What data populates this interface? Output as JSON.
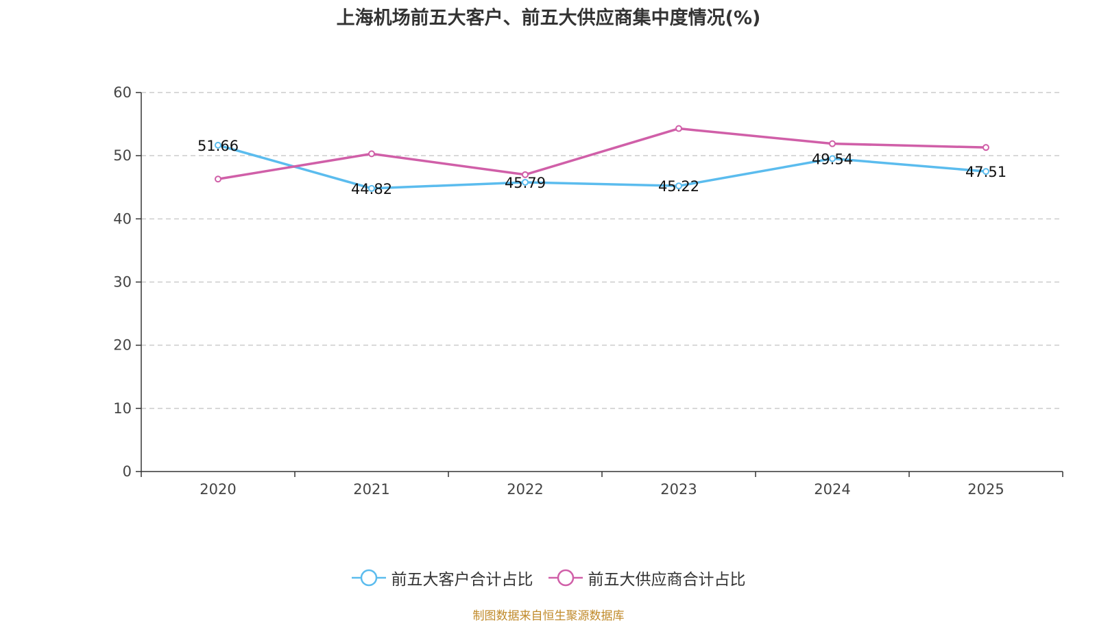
{
  "chart_data": {
    "type": "line",
    "title": "上海机场前五大客户、前五大供应商集中度情况(%)",
    "categories": [
      "2020",
      "2021",
      "2022",
      "2023",
      "2024",
      "2025"
    ],
    "ylim": [
      0,
      60
    ],
    "yticks": [
      0,
      10,
      20,
      30,
      40,
      50,
      60
    ],
    "grid": true,
    "legend_position": "bottom-center",
    "series": [
      {
        "name": "前五大客户合计占比",
        "color": "#5bbcee",
        "values": [
          51.66,
          44.82,
          45.79,
          45.22,
          49.54,
          47.51
        ],
        "labels": [
          "51.66",
          "44.82",
          "45.79",
          "45.22",
          "49.54",
          "47.51"
        ]
      },
      {
        "name": "前五大供应商合计占比",
        "color": "#d05fa8",
        "values": [
          46.3,
          50.3,
          47.0,
          54.3,
          51.9,
          51.3
        ],
        "labels": []
      }
    ]
  },
  "source": "制图数据来自恒生聚源数据库"
}
